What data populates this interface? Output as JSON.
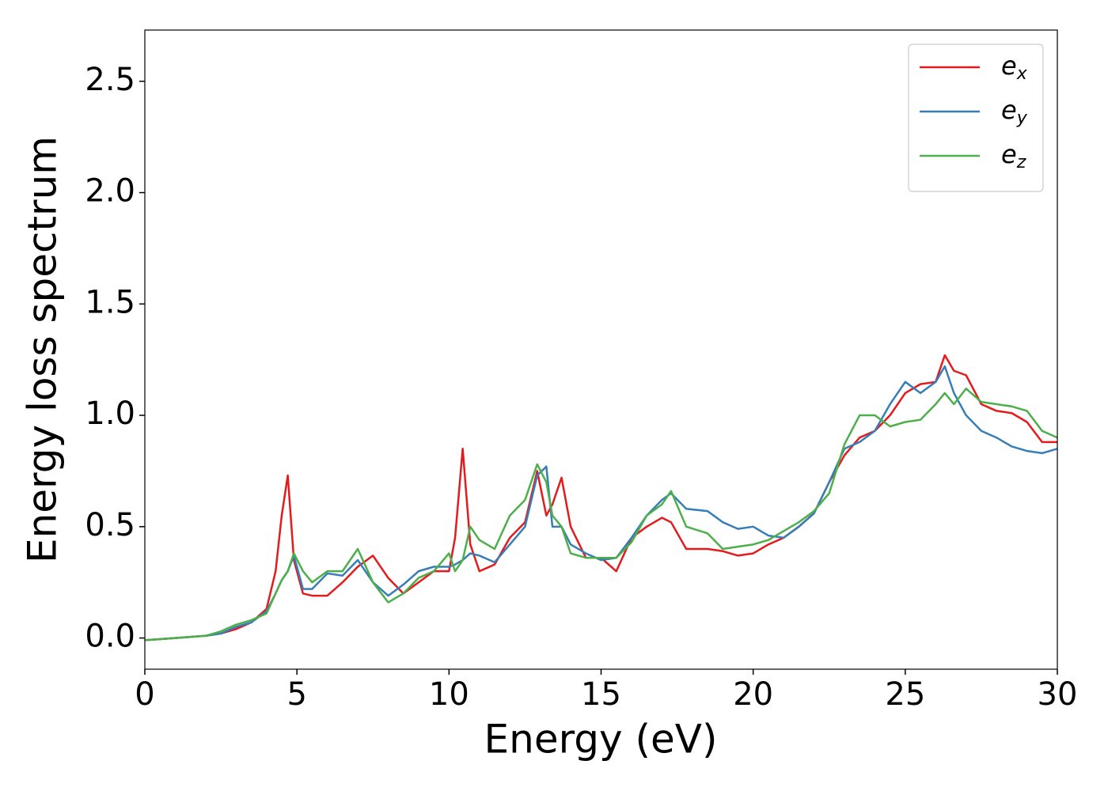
{
  "chart_data": {
    "type": "line",
    "xlabel": "Energy (eV)",
    "ylabel": "Energy loss spectrum",
    "x": [
      0,
      1,
      2,
      2.5,
      3,
      3.5,
      4,
      4.3,
      4.5,
      4.7,
      4.9,
      5.2,
      5.5,
      6,
      6.5,
      7,
      7.5,
      8,
      8.5,
      9,
      9.5,
      10,
      10.2,
      10.45,
      10.7,
      11,
      11.5,
      12,
      12.5,
      12.9,
      13.2,
      13.4,
      13.7,
      14,
      14.5,
      15,
      15.5,
      16,
      16.5,
      17,
      17.3,
      17.8,
      18.5,
      19,
      19.5,
      20,
      20.5,
      21,
      21.5,
      22,
      22.5,
      23,
      23.5,
      24,
      24.5,
      25,
      25.5,
      26,
      26.3,
      26.6,
      27,
      27.5,
      28,
      28.5,
      29,
      29.5,
      30
    ],
    "series": [
      {
        "name": "ex",
        "color": "#e41a1c",
        "values": [
          -0.01,
          0,
          0.01,
          0.02,
          0.04,
          0.07,
          0.13,
          0.3,
          0.55,
          0.73,
          0.35,
          0.2,
          0.19,
          0.19,
          0.25,
          0.32,
          0.37,
          0.27,
          0.2,
          0.25,
          0.3,
          0.3,
          0.45,
          0.85,
          0.42,
          0.3,
          0.33,
          0.45,
          0.52,
          0.75,
          0.55,
          0.6,
          0.72,
          0.5,
          0.36,
          0.36,
          0.3,
          0.45,
          0.5,
          0.54,
          0.52,
          0.4,
          0.4,
          0.39,
          0.37,
          0.38,
          0.42,
          0.45,
          0.5,
          0.56,
          0.7,
          0.82,
          0.9,
          0.93,
          1.0,
          1.1,
          1.14,
          1.15,
          1.27,
          1.2,
          1.18,
          1.05,
          1.02,
          1.01,
          0.97,
          0.88,
          0.88
        ]
      },
      {
        "name": "ey",
        "color": "#377eb8",
        "values": [
          -0.01,
          0,
          0.01,
          0.02,
          0.05,
          0.07,
          0.12,
          0.2,
          0.26,
          0.3,
          0.37,
          0.22,
          0.22,
          0.29,
          0.28,
          0.35,
          0.25,
          0.19,
          0.24,
          0.3,
          0.32,
          0.32,
          0.33,
          0.35,
          0.38,
          0.37,
          0.34,
          0.42,
          0.5,
          0.73,
          0.77,
          0.5,
          0.5,
          0.42,
          0.38,
          0.35,
          0.36,
          0.45,
          0.55,
          0.62,
          0.65,
          0.58,
          0.57,
          0.52,
          0.49,
          0.5,
          0.46,
          0.45,
          0.5,
          0.56,
          0.7,
          0.85,
          0.88,
          0.93,
          1.05,
          1.15,
          1.1,
          1.15,
          1.22,
          1.1,
          1.0,
          0.93,
          0.9,
          0.86,
          0.84,
          0.83,
          0.85
        ]
      },
      {
        "name": "ez",
        "color": "#4daf4a",
        "values": [
          -0.01,
          0,
          0.01,
          0.03,
          0.06,
          0.08,
          0.11,
          0.2,
          0.26,
          0.3,
          0.38,
          0.3,
          0.25,
          0.3,
          0.3,
          0.4,
          0.25,
          0.16,
          0.2,
          0.27,
          0.3,
          0.38,
          0.3,
          0.35,
          0.5,
          0.44,
          0.4,
          0.55,
          0.62,
          0.78,
          0.7,
          0.55,
          0.5,
          0.38,
          0.36,
          0.36,
          0.36,
          0.43,
          0.55,
          0.6,
          0.66,
          0.5,
          0.47,
          0.4,
          0.41,
          0.42,
          0.44,
          0.48,
          0.52,
          0.57,
          0.65,
          0.87,
          1.0,
          1.0,
          0.95,
          0.97,
          0.98,
          1.05,
          1.1,
          1.05,
          1.12,
          1.06,
          1.05,
          1.04,
          1.02,
          0.93,
          0.9
        ]
      }
    ],
    "xlim": [
      0,
      30
    ],
    "xticks": [
      0,
      5,
      10,
      15,
      20,
      25,
      30
    ],
    "ylim": [
      -0.14,
      2.73
    ],
    "yticks": [
      {
        "value": 0,
        "label": "0.0"
      },
      0.5,
      {
        "value": 1,
        "label": "1.0"
      },
      1.5,
      {
        "value": 2,
        "label": "2.0"
      },
      2.5
    ],
    "grid": false,
    "legend": "upper right"
  }
}
